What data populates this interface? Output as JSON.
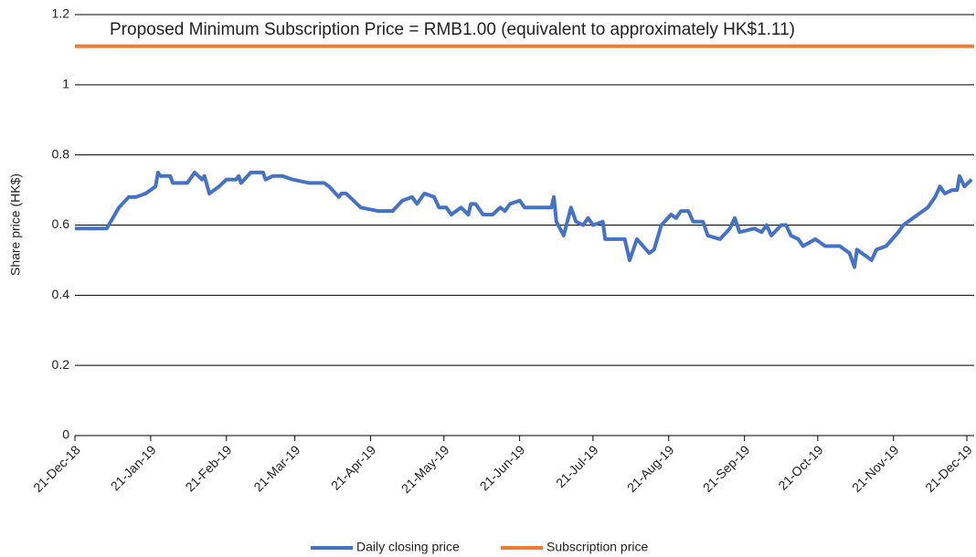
{
  "chart_data": {
    "type": "line",
    "annotation": "Proposed Minimum Subscription Price = RMB1.00 (equivalent to approximately HK$1.11)",
    "y_label": "Share price (HK$)",
    "xlim": [
      "2018-12-21",
      "2019-12-24"
    ],
    "ylim": [
      0,
      1.2
    ],
    "yticks": [
      0,
      0.2,
      0.4,
      0.6,
      0.8,
      1,
      1.2
    ],
    "xticks": [
      {
        "value": "2018-12-21",
        "label": "21-Dec-18"
      },
      {
        "value": "2019-01-21",
        "label": "21-Jan-19"
      },
      {
        "value": "2019-02-21",
        "label": "21-Feb-19"
      },
      {
        "value": "2019-03-21",
        "label": "21-Mar-19"
      },
      {
        "value": "2019-04-21",
        "label": "21-Apr-19"
      },
      {
        "value": "2019-05-21",
        "label": "21-May-19"
      },
      {
        "value": "2019-06-21",
        "label": "21-Jun-19"
      },
      {
        "value": "2019-07-21",
        "label": "21-Jul-19"
      },
      {
        "value": "2019-08-21",
        "label": "21-Aug-19"
      },
      {
        "value": "2019-09-21",
        "label": "21-Sep-19"
      },
      {
        "value": "2019-10-21",
        "label": "21-Oct-19"
      },
      {
        "value": "2019-11-21",
        "label": "21-Nov-19"
      },
      {
        "value": "2019-12-21",
        "label": "21-Dec-19"
      }
    ],
    "grid": true,
    "legend": "bottom",
    "series": [
      {
        "name": "Daily closing price",
        "color": "#4472c4",
        "x": [
          "2018-12-21",
          "2019-01-03",
          "2019-01-08",
          "2019-01-12",
          "2019-01-15",
          "2019-01-19",
          "2019-01-23",
          "2019-01-24",
          "2019-01-25",
          "2019-01-29",
          "2019-01-30",
          "2019-02-05",
          "2019-02-08",
          "2019-02-11",
          "2019-02-12",
          "2019-02-14",
          "2019-02-18",
          "2019-02-21",
          "2019-02-25",
          "2019-02-26",
          "2019-02-27",
          "2019-03-03",
          "2019-03-08",
          "2019-03-09",
          "2019-03-12",
          "2019-03-16",
          "2019-03-20",
          "2019-03-27",
          "2019-04-02",
          "2019-04-04",
          "2019-04-08",
          "2019-04-09",
          "2019-04-11",
          "2019-04-17",
          "2019-04-24",
          "2019-04-30",
          "2019-05-04",
          "2019-05-08",
          "2019-05-10",
          "2019-05-13",
          "2019-05-17",
          "2019-05-19",
          "2019-05-22",
          "2019-05-24",
          "2019-05-28",
          "2019-05-31",
          "2019-06-01",
          "2019-06-03",
          "2019-06-06",
          "2019-06-10",
          "2019-06-13",
          "2019-06-15",
          "2019-06-17",
          "2019-06-21",
          "2019-06-23",
          "2019-07-01",
          "2019-07-04",
          "2019-07-05",
          "2019-07-06",
          "2019-07-09",
          "2019-07-12",
          "2019-07-14",
          "2019-07-17",
          "2019-07-19",
          "2019-07-21",
          "2019-07-25",
          "2019-07-26",
          "2019-08-03",
          "2019-08-05",
          "2019-08-08",
          "2019-08-13",
          "2019-08-15",
          "2019-08-18",
          "2019-08-22",
          "2019-08-24",
          "2019-08-26",
          "2019-08-29",
          "2019-08-31",
          "2019-09-04",
          "2019-09-06",
          "2019-09-11",
          "2019-09-15",
          "2019-09-17",
          "2019-09-19",
          "2019-09-25",
          "2019-09-28",
          "2019-09-30",
          "2019-10-02",
          "2019-10-06",
          "2019-10-08",
          "2019-10-10",
          "2019-10-13",
          "2019-10-15",
          "2019-10-20",
          "2019-10-24",
          "2019-10-30",
          "2019-11-03",
          "2019-11-05",
          "2019-11-06",
          "2019-11-12",
          "2019-11-14",
          "2019-11-18",
          "2019-11-23",
          "2019-11-25",
          "2019-11-29",
          "2019-12-03",
          "2019-12-05",
          "2019-12-08",
          "2019-12-10",
          "2019-12-12",
          "2019-12-15",
          "2019-12-17",
          "2019-12-18",
          "2019-12-20",
          "2019-12-23"
        ],
        "values": [
          0.59,
          0.59,
          0.65,
          0.68,
          0.68,
          0.69,
          0.71,
          0.75,
          0.74,
          0.74,
          0.72,
          0.72,
          0.75,
          0.73,
          0.74,
          0.69,
          0.71,
          0.73,
          0.73,
          0.74,
          0.72,
          0.75,
          0.75,
          0.73,
          0.74,
          0.74,
          0.73,
          0.72,
          0.72,
          0.71,
          0.68,
          0.69,
          0.69,
          0.65,
          0.64,
          0.64,
          0.67,
          0.68,
          0.66,
          0.69,
          0.68,
          0.65,
          0.65,
          0.63,
          0.65,
          0.63,
          0.66,
          0.66,
          0.63,
          0.63,
          0.65,
          0.64,
          0.66,
          0.67,
          0.65,
          0.65,
          0.65,
          0.68,
          0.61,
          0.57,
          0.65,
          0.61,
          0.6,
          0.62,
          0.6,
          0.61,
          0.56,
          0.56,
          0.5,
          0.56,
          0.52,
          0.53,
          0.6,
          0.63,
          0.62,
          0.64,
          0.64,
          0.61,
          0.61,
          0.57,
          0.56,
          0.59,
          0.62,
          0.58,
          0.59,
          0.58,
          0.6,
          0.57,
          0.6,
          0.6,
          0.57,
          0.56,
          0.54,
          0.56,
          0.54,
          0.54,
          0.52,
          0.48,
          0.53,
          0.5,
          0.53,
          0.54,
          0.58,
          0.6,
          0.62,
          0.64,
          0.65,
          0.68,
          0.71,
          0.69,
          0.7,
          0.7,
          0.74,
          0.71,
          0.73
        ]
      },
      {
        "name": "Subscription price",
        "color": "#ed7d31",
        "x": [
          "2018-12-21",
          "2019-12-24"
        ],
        "values": [
          1.11,
          1.11
        ]
      }
    ]
  }
}
